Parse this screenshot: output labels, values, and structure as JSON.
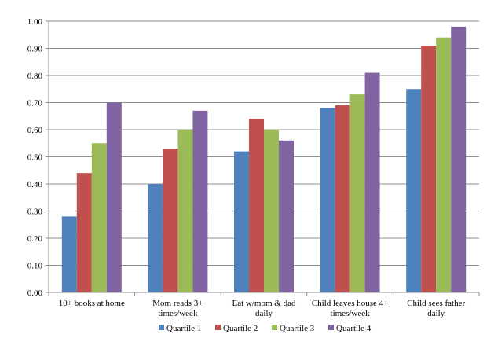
{
  "chart_data": {
    "type": "bar",
    "title": "",
    "xlabel": "",
    "ylabel": "",
    "ylim": [
      0,
      1
    ],
    "yticks": [
      "0.00",
      "0.10",
      "0.20",
      "0.30",
      "0.40",
      "0.50",
      "0.60",
      "0.70",
      "0.80",
      "0.90",
      "1.00"
    ],
    "grid": true,
    "legend_position": "bottom",
    "categories": [
      [
        "10+ books at home"
      ],
      [
        "Mom reads 3+",
        "times/week"
      ],
      [
        "Eat w/mom & dad",
        "daily"
      ],
      [
        "Child leaves house 4+",
        "times/week"
      ],
      [
        "Child sees father",
        "daily"
      ]
    ],
    "series": [
      {
        "name": "Quartile 1",
        "color": "#4F81BD",
        "values": [
          0.28,
          0.4,
          0.52,
          0.68,
          0.75
        ]
      },
      {
        "name": "Quartile 2",
        "color": "#C0504D",
        "values": [
          0.44,
          0.53,
          0.64,
          0.69,
          0.91
        ]
      },
      {
        "name": "Quartile 3",
        "color": "#9BBB59",
        "values": [
          0.55,
          0.6,
          0.6,
          0.73,
          0.94
        ]
      },
      {
        "name": "Quartile 4",
        "color": "#8064A2",
        "values": [
          0.7,
          0.67,
          0.56,
          0.81,
          0.98
        ]
      }
    ]
  }
}
